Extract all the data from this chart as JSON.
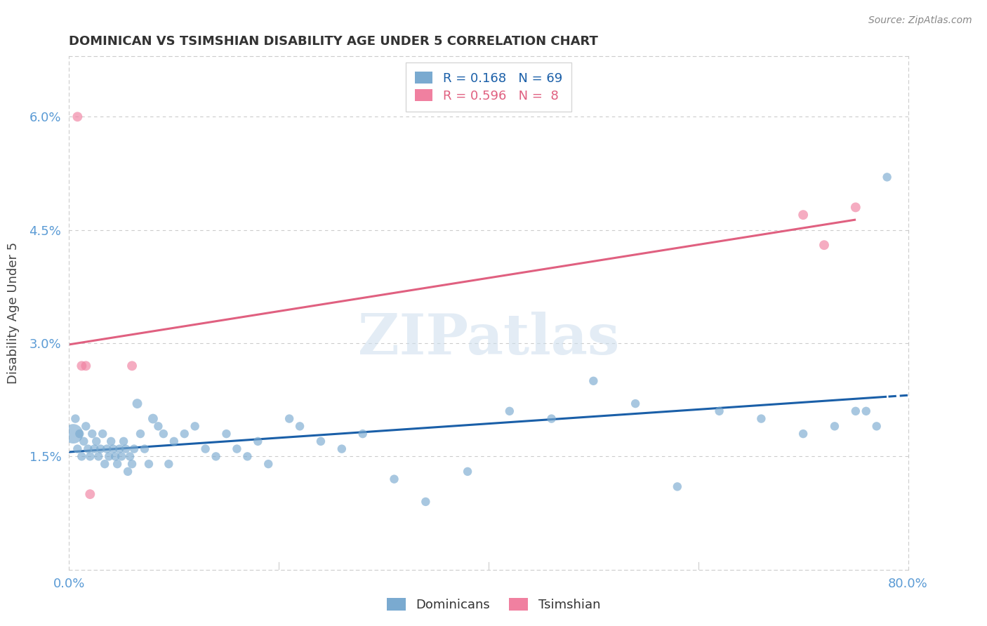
{
  "title": "DOMINICAN VS TSIMSHIAN DISABILITY AGE UNDER 5 CORRELATION CHART",
  "source": "Source: ZipAtlas.com",
  "ylabel": "Disability Age Under 5",
  "xlim": [
    0.0,
    0.8
  ],
  "ylim": [
    0.0,
    0.068
  ],
  "yticks": [
    0.015,
    0.03,
    0.045,
    0.06
  ],
  "ytick_labels": [
    "1.5%",
    "3.0%",
    "4.5%",
    "6.0%"
  ],
  "xticks": [
    0.0,
    0.2,
    0.4,
    0.6,
    0.8
  ],
  "xtick_labels": [
    "0.0%",
    "",
    "",
    "",
    "80.0%"
  ],
  "grid_color": "#cccccc",
  "background_color": "#ffffff",
  "blue_color": "#7aaad0",
  "pink_color": "#f080a0",
  "blue_line_color": "#1a5fa8",
  "pink_line_color": "#e06080",
  "tick_label_color": "#5b9bd5",
  "legend_R_blue": "0.168",
  "legend_N_blue": "69",
  "legend_R_pink": "0.596",
  "legend_N_pink": " 8",
  "watermark": "ZIPatlas",
  "dom_x": [
    0.004,
    0.006,
    0.008,
    0.01,
    0.012,
    0.014,
    0.016,
    0.018,
    0.02,
    0.022,
    0.024,
    0.026,
    0.028,
    0.03,
    0.032,
    0.034,
    0.036,
    0.038,
    0.04,
    0.042,
    0.044,
    0.046,
    0.048,
    0.05,
    0.052,
    0.054,
    0.056,
    0.058,
    0.06,
    0.062,
    0.065,
    0.068,
    0.072,
    0.076,
    0.08,
    0.085,
    0.09,
    0.095,
    0.1,
    0.11,
    0.12,
    0.13,
    0.14,
    0.15,
    0.16,
    0.17,
    0.18,
    0.19,
    0.21,
    0.22,
    0.24,
    0.26,
    0.28,
    0.31,
    0.34,
    0.38,
    0.42,
    0.46,
    0.5,
    0.54,
    0.58,
    0.62,
    0.66,
    0.7,
    0.73,
    0.75,
    0.76,
    0.77,
    0.78
  ],
  "dom_y": [
    0.018,
    0.02,
    0.016,
    0.018,
    0.015,
    0.017,
    0.019,
    0.016,
    0.015,
    0.018,
    0.016,
    0.017,
    0.015,
    0.016,
    0.018,
    0.014,
    0.016,
    0.015,
    0.017,
    0.016,
    0.015,
    0.014,
    0.016,
    0.015,
    0.017,
    0.016,
    0.013,
    0.015,
    0.014,
    0.016,
    0.022,
    0.018,
    0.016,
    0.014,
    0.02,
    0.019,
    0.018,
    0.014,
    0.017,
    0.018,
    0.019,
    0.016,
    0.015,
    0.018,
    0.016,
    0.015,
    0.017,
    0.014,
    0.02,
    0.019,
    0.017,
    0.016,
    0.018,
    0.012,
    0.009,
    0.013,
    0.021,
    0.02,
    0.025,
    0.022,
    0.011,
    0.021,
    0.02,
    0.018,
    0.019,
    0.021,
    0.021,
    0.019,
    0.052
  ],
  "dom_sizes": [
    400,
    80,
    80,
    80,
    80,
    80,
    80,
    80,
    80,
    80,
    80,
    80,
    80,
    80,
    80,
    80,
    80,
    80,
    80,
    80,
    80,
    80,
    80,
    80,
    80,
    80,
    80,
    80,
    80,
    80,
    100,
    80,
    80,
    80,
    100,
    80,
    80,
    80,
    80,
    80,
    80,
    80,
    80,
    80,
    80,
    80,
    80,
    80,
    80,
    80,
    80,
    80,
    80,
    80,
    80,
    80,
    80,
    80,
    80,
    80,
    80,
    80,
    80,
    80,
    80,
    80,
    80,
    80,
    80
  ],
  "tsim_x": [
    0.008,
    0.012,
    0.016,
    0.02,
    0.06,
    0.7,
    0.72,
    0.75
  ],
  "tsim_y": [
    0.06,
    0.027,
    0.027,
    0.01,
    0.027,
    0.047,
    0.043,
    0.048
  ],
  "tsim_sizes": [
    100,
    100,
    100,
    100,
    100,
    100,
    100,
    100
  ]
}
